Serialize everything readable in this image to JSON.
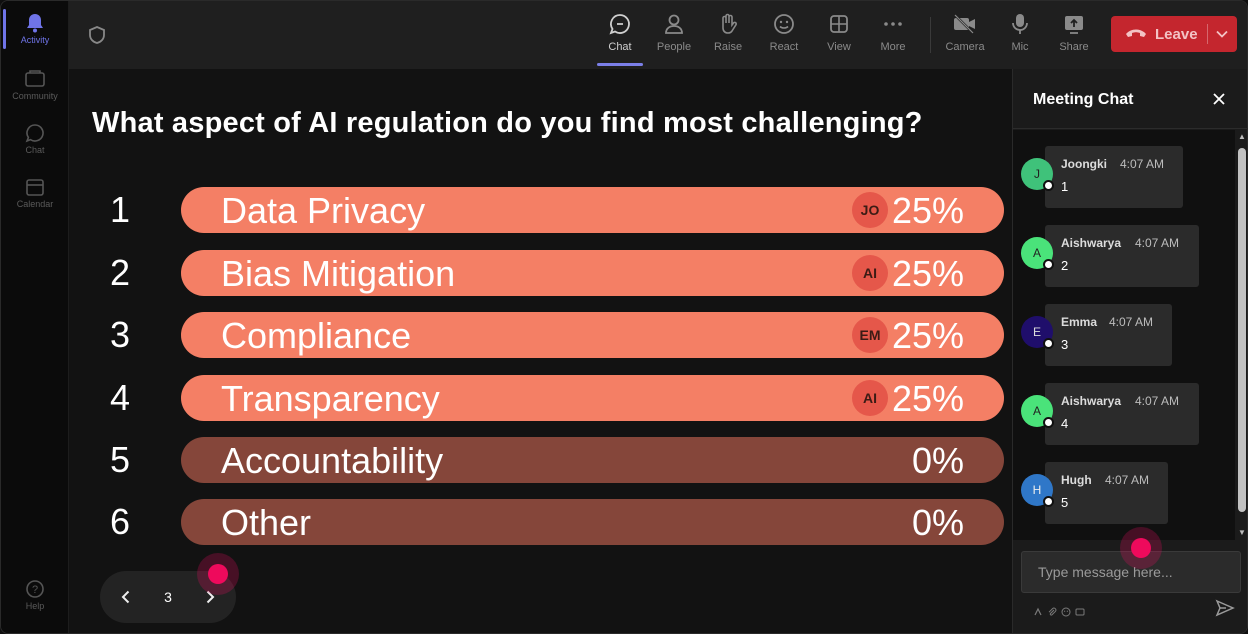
{
  "rail": {
    "items": [
      {
        "label": "Activity",
        "icon": "bell-icon"
      },
      {
        "label": "Community",
        "icon": "community-icon"
      },
      {
        "label": "Chat",
        "icon": "chat-icon"
      },
      {
        "label": "Calendar",
        "icon": "calendar-icon"
      },
      {
        "label": "Help",
        "icon": "help-icon"
      }
    ]
  },
  "toolbar": {
    "chat": "Chat",
    "people": "People",
    "raise": "Raise",
    "react": "React",
    "view": "View",
    "more": "More",
    "camera": "Camera",
    "mic": "Mic",
    "share": "Share",
    "leave": "Leave",
    "leave_color": "#c4262e"
  },
  "poll": {
    "question": "What aspect of AI regulation do you find most challenging?",
    "options": [
      {
        "num": "1",
        "label": "Data Privacy",
        "badge": "JO",
        "pct": "25%"
      },
      {
        "num": "2",
        "label": "Bias Mitigation",
        "badge": "AI",
        "pct": "25%"
      },
      {
        "num": "3",
        "label": "Compliance",
        "badge": "EM",
        "pct": "25%"
      },
      {
        "num": "4",
        "label": "Transparency",
        "badge": "AI",
        "pct": "25%"
      },
      {
        "num": "5",
        "label": "Accountability",
        "badge": "",
        "pct": "0%"
      },
      {
        "num": "6",
        "label": "Other",
        "badge": "",
        "pct": "0%"
      }
    ],
    "colors": {
      "voted": "#f47f65",
      "empty": "#85463a"
    }
  },
  "pager": {
    "page": "3"
  },
  "chat": {
    "title": "Meeting Chat",
    "messages": [
      {
        "initial": "J",
        "name": "Joongki",
        "time": "4:07 AM",
        "text": "1",
        "avatar_color": "#3fc27a"
      },
      {
        "initial": "A",
        "name": "Aishwarya",
        "time": "4:07 AM",
        "text": "2",
        "avatar_color": "#4ae37a"
      },
      {
        "initial": "E",
        "name": "Emma",
        "time": "4:07 AM",
        "text": "3",
        "avatar_color": "#1f0e6b"
      },
      {
        "initial": "A",
        "name": "Aishwarya",
        "time": "4:07 AM",
        "text": "4",
        "avatar_color": "#4ae37a"
      },
      {
        "initial": "H",
        "name": "Hugh",
        "time": "4:07 AM",
        "text": "5",
        "avatar_color": "#2f77c8"
      }
    ],
    "placeholder": "Type message here..."
  }
}
